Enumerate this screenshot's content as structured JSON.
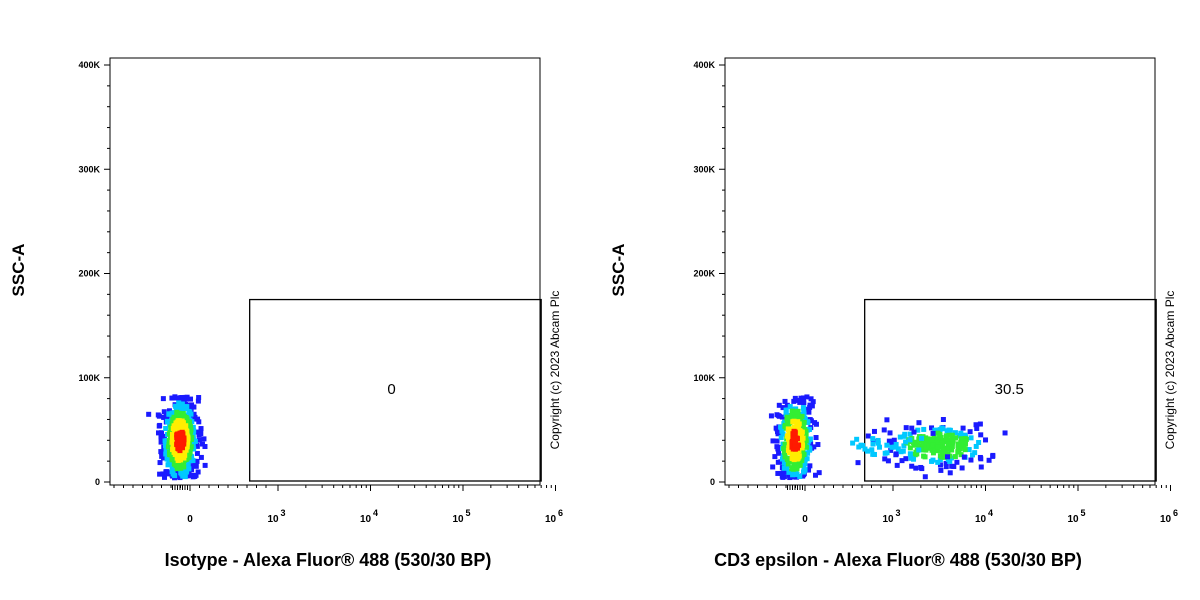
{
  "colors": {
    "density_low": "#1a1aff",
    "density_mid_low": "#00c8ff",
    "density_mid": "#33ee33",
    "density_mid_high": "#ffee00",
    "density_high": "#ff1a00"
  },
  "chart_data": [
    {
      "type": "scatter",
      "subtype": "flow-cytometry-density-plot",
      "xlabel": "Isotype - Alexa Fluor® 488 (530/30 BP)",
      "ylabel": "SSC-A",
      "x_scale": "biexponential",
      "y_ticks": [
        "0",
        "100K",
        "200K",
        "300K",
        "400K"
      ],
      "y_tick_values": [
        0,
        100000,
        200000,
        300000,
        400000
      ],
      "x_ticks": [
        {
          "base": "0",
          "exp": ""
        },
        {
          "base": "10",
          "exp": "3"
        },
        {
          "base": "10",
          "exp": "4"
        },
        {
          "base": "10",
          "exp": "5"
        },
        {
          "base": "10",
          "exp": "6"
        }
      ],
      "x_tick_values": [
        0,
        1000,
        10000,
        100000,
        1000000
      ],
      "ylim": [
        0,
        400000
      ],
      "gate": {
        "x_range": [
          300,
          700000
        ],
        "y_range": [
          0,
          175000
        ],
        "label": "0"
      },
      "populations": [
        {
          "x": 0,
          "y": 40000,
          "x_spread": 0.35,
          "y_spread": 18000,
          "count": 520,
          "peak": "high"
        }
      ],
      "copyright": "Copyright (c) 2023 Abcam Plc"
    },
    {
      "type": "scatter",
      "subtype": "flow-cytometry-density-plot",
      "xlabel": "CD3 epsilon - Alexa Fluor® 488 (530/30 BP)",
      "ylabel": "SSC-A",
      "x_scale": "biexponential",
      "y_ticks": [
        "0",
        "100K",
        "200K",
        "300K",
        "400K"
      ],
      "y_tick_values": [
        0,
        100000,
        200000,
        300000,
        400000
      ],
      "x_ticks": [
        {
          "base": "0",
          "exp": ""
        },
        {
          "base": "10",
          "exp": "3"
        },
        {
          "base": "10",
          "exp": "4"
        },
        {
          "base": "10",
          "exp": "5"
        },
        {
          "base": "10",
          "exp": "6"
        }
      ],
      "x_tick_values": [
        0,
        1000,
        10000,
        100000,
        1000000
      ],
      "ylim": [
        0,
        400000
      ],
      "gate": {
        "x_range": [
          300,
          700000
        ],
        "y_range": [
          0,
          175000
        ],
        "label": "30.5"
      },
      "populations": [
        {
          "x": 0,
          "y": 40000,
          "x_spread": 0.35,
          "y_spread": 18000,
          "count": 360,
          "peak": "high"
        },
        {
          "x": 3000,
          "y": 35000,
          "x_spread": 0.28,
          "y_spread": 10000,
          "count": 230,
          "peak": "mid"
        },
        {
          "x": 700,
          "y": 33000,
          "x_spread": 0.4,
          "y_spread": 9000,
          "count": 35,
          "peak": "low"
        }
      ],
      "copyright": "Copyright (c) 2023 Abcam Plc"
    }
  ]
}
